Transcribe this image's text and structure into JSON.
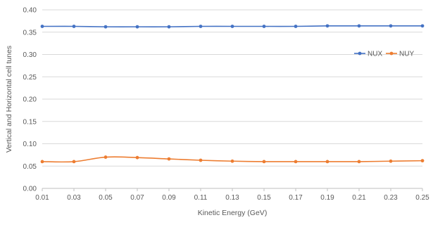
{
  "chart_data": {
    "type": "line",
    "xlabel": "Kinetic Energy (GeV)",
    "ylabel": "Vertical and Horizontal cell tunes",
    "x": [
      0.01,
      0.03,
      0.05,
      0.07,
      0.09,
      0.11,
      0.13,
      0.15,
      0.17,
      0.19,
      0.21,
      0.23,
      0.25
    ],
    "x_tick_labels": [
      "0.01",
      "0.03",
      "0.05",
      "0.07",
      "0.09",
      "0.11",
      "0.13",
      "0.15",
      "0.17",
      "0.19",
      "0.21",
      "0.23",
      "0.25"
    ],
    "ylim": [
      0,
      0.4
    ],
    "y_ticks": [
      0,
      0.05,
      0.1,
      0.15,
      0.2,
      0.25,
      0.3,
      0.35,
      0.4
    ],
    "y_tick_labels": [
      "0.00",
      "0.05",
      "0.10",
      "0.15",
      "0.20",
      "0.25",
      "0.30",
      "0.35",
      "0.40"
    ],
    "grid": true,
    "legend_position": "right",
    "series": [
      {
        "name": "NUX",
        "color": "#4472c4",
        "values": [
          0.363,
          0.363,
          0.362,
          0.362,
          0.362,
          0.363,
          0.363,
          0.363,
          0.363,
          0.364,
          0.364,
          0.364,
          0.364
        ]
      },
      {
        "name": "NUY",
        "color": "#ed7d31",
        "values": [
          0.06,
          0.06,
          0.07,
          0.069,
          0.066,
          0.063,
          0.061,
          0.06,
          0.06,
          0.06,
          0.06,
          0.061,
          0.062
        ]
      }
    ]
  }
}
